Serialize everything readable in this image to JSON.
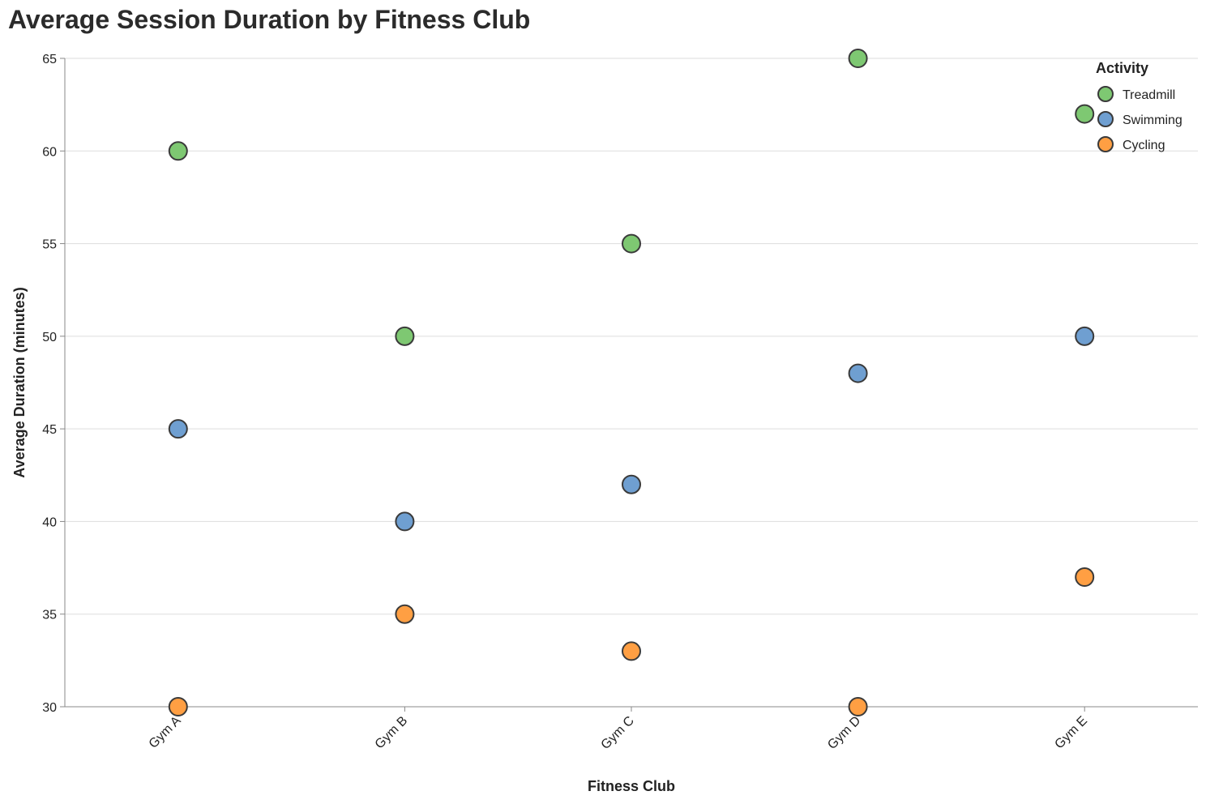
{
  "chart_data": {
    "type": "scatter",
    "title": "Average Session Duration by Fitness Club",
    "xlabel": "Fitness Club",
    "ylabel": "Average Duration (minutes)",
    "categories": [
      "Gym A",
      "Gym B",
      "Gym C",
      "Gym D",
      "Gym E"
    ],
    "ylim": [
      30,
      65
    ],
    "yticks": [
      30,
      35,
      40,
      45,
      50,
      55,
      60,
      65
    ],
    "grid": true,
    "legend": {
      "title": "Activity",
      "position": "top-right"
    },
    "series": [
      {
        "name": "Treadmill",
        "color": "#7ec872",
        "values": [
          60,
          50,
          55,
          65,
          62
        ]
      },
      {
        "name": "Swimming",
        "color": "#6f9fd1",
        "values": [
          45,
          40,
          42,
          48,
          50
        ]
      },
      {
        "name": "Cycling",
        "color": "#ff9f43",
        "values": [
          30,
          35,
          33,
          30,
          37
        ]
      }
    ]
  }
}
